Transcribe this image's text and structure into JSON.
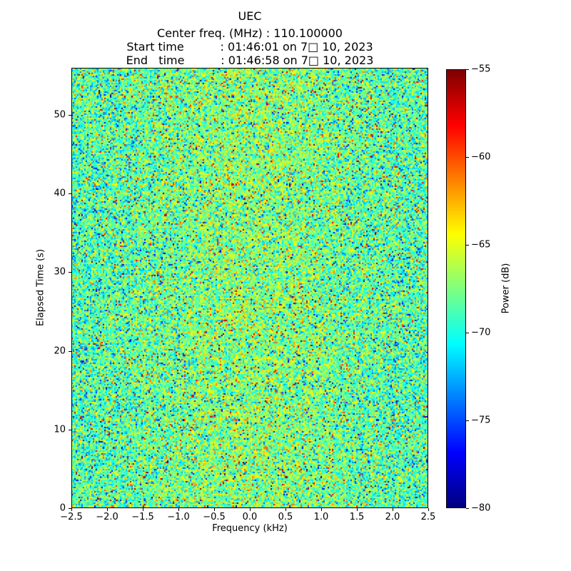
{
  "figure": {
    "title": "UEC",
    "info_lines": [
      "Center freq. (MHz) : 110.100000",
      "Start time          : 01:46:01 on 7□ 10, 2023",
      "End   time          : 01:46:58 on 7□ 10, 2023"
    ]
  },
  "chart_data": {
    "type": "heatmap",
    "title": "UEC",
    "subtitle_lines": [
      "Center freq. (MHz) : 110.100000",
      "Start time : 01:46:01 on 7□ 10, 2023",
      "End time : 01:46:58 on 7□ 10, 2023"
    ],
    "xlabel": "Frequency (kHz)",
    "ylabel": "Elapsed Time (s)",
    "colorbar_label": "Power (dB)",
    "xlim": [
      -2.5,
      2.5
    ],
    "ylim": [
      0,
      56
    ],
    "clim": [
      -80,
      -55
    ],
    "x_ticks": {
      "values": [
        -2.5,
        -2.0,
        -1.5,
        -1.0,
        -0.5,
        0.0,
        0.5,
        1.0,
        1.5,
        2.0,
        2.5
      ],
      "labels": [
        "−2.5",
        "−2.0",
        "−1.5",
        "−1.0",
        "−0.5",
        "0.0",
        "0.5",
        "1.0",
        "1.5",
        "2.0",
        "2.5"
      ]
    },
    "y_ticks": {
      "values": [
        0,
        10,
        20,
        30,
        40,
        50
      ],
      "labels": [
        "0",
        "10",
        "20",
        "30",
        "40",
        "50"
      ]
    },
    "colorbar_ticks": {
      "values": [
        -55,
        -60,
        -65,
        -70,
        -75,
        -80
      ],
      "labels": [
        "−55",
        "−60",
        "−65",
        "−70",
        "−75",
        "−80"
      ]
    },
    "colormap": "jet",
    "grid": false,
    "legend": "none",
    "noise_model": {
      "seed": 20230710,
      "cols": 250,
      "rows": 300,
      "mean_db": -68.8,
      "std_db": 2.8,
      "outlier_fraction": 0.08,
      "center_bump_db": 1.6,
      "center_bump_sigma_khz": 1.1
    }
  }
}
